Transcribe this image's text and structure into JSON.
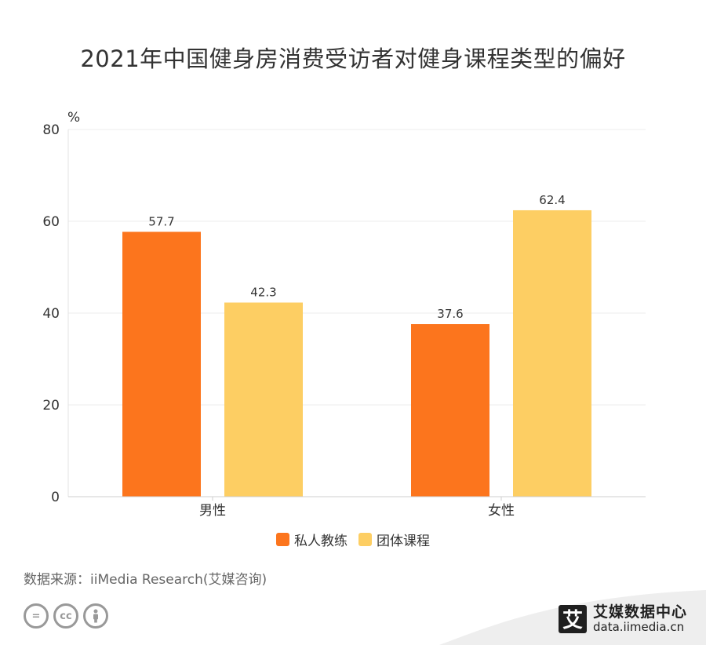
{
  "title": "2021年中国健身房消费受访者对健身课程类型的偏好",
  "unit_label": "%",
  "source": "数据来源：iiMedia Research(艾媒咨询)",
  "brand": {
    "logo_char": "艾",
    "name": "艾媒数据中心",
    "url": "data.iimedia.cn"
  },
  "license_icons": [
    "equals-icon",
    "cc-icon",
    "attribution-icon"
  ],
  "license_text": {
    "equals": "=",
    "cc": "cc"
  },
  "chart_data": {
    "type": "bar",
    "title": "2021年中国健身房消费受访者对健身课程类型的偏好",
    "ylabel": "%",
    "categories": [
      "男性",
      "女性"
    ],
    "ylim": [
      0,
      80
    ],
    "yticks": [
      0,
      20,
      40,
      60,
      80
    ],
    "grid": true,
    "legend_position": "bottom",
    "series": [
      {
        "name": "私人教练",
        "values": [
          57.7,
          37.6
        ],
        "color": "#fc751d"
      },
      {
        "name": "团体课程",
        "values": [
          42.3,
          62.4
        ],
        "color": "#fdce63"
      }
    ]
  }
}
